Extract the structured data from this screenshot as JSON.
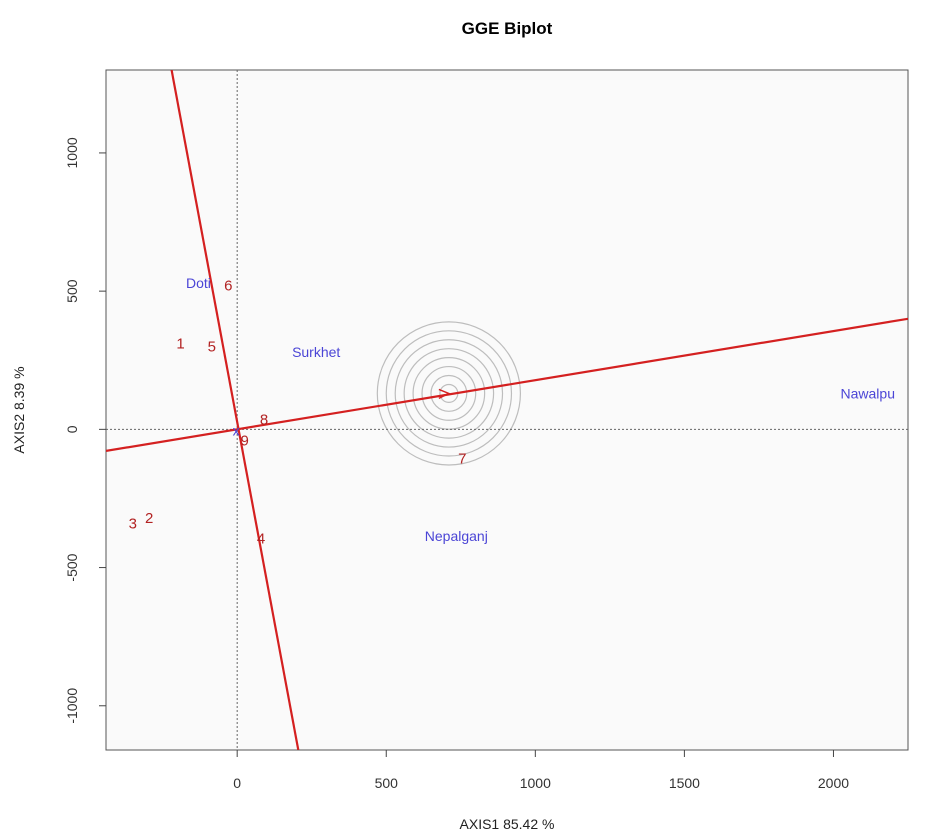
{
  "chart_data": {
    "type": "scatter",
    "title": "GGE Biplot",
    "xlabel": "AXIS1 85.42 %",
    "ylabel": "AXIS2 8.39 %",
    "xlim": [
      -440,
      2250
    ],
    "ylim": [
      -1160,
      1300
    ],
    "x_ticks": [
      0,
      500,
      1000,
      1500,
      2000
    ],
    "x_tick_labels": [
      "0",
      "500",
      "1000",
      "1500",
      "2000"
    ],
    "y_ticks": [
      -1000,
      -500,
      0,
      500,
      1000
    ],
    "y_tick_labels": [
      "-1000",
      "-500",
      "0",
      "500",
      "1000"
    ],
    "grid": false,
    "colors": {
      "genotype": "#b22222",
      "environment": "#4b45d6",
      "line": "#d42020",
      "circle": "#bdbdbd",
      "origin_line": "#666666"
    },
    "genotypes": [
      {
        "label": "1",
        "x": -190,
        "y": 310
      },
      {
        "label": "2",
        "x": -295,
        "y": -320
      },
      {
        "label": "3",
        "x": -350,
        "y": -340
      },
      {
        "label": "4",
        "x": 80,
        "y": -395
      },
      {
        "label": "5",
        "x": -85,
        "y": 300
      },
      {
        "label": "6",
        "x": -30,
        "y": 520
      },
      {
        "label": "7",
        "x": 755,
        "y": -105
      },
      {
        "label": "8",
        "x": 90,
        "y": 35
      },
      {
        "label": "9",
        "x": 25,
        "y": -40
      }
    ],
    "environments": [
      {
        "label": "Doti",
        "x": -130,
        "y": 530
      },
      {
        "label": "Surkhet",
        "x": 265,
        "y": 280
      },
      {
        "label": "Nepalganj",
        "x": 735,
        "y": -385
      },
      {
        "label": "Nawalpu",
        "x": 2115,
        "y": 130
      }
    ],
    "ideal_point": {
      "x": 710,
      "y": 130
    },
    "concentric_circles": 8,
    "aec_abscissa": {
      "x1": -440,
      "y1": -78,
      "x2": 2250,
      "y2": 400
    },
    "aec_ordinate": {
      "x1": -220,
      "y1": 1300,
      "x2": 205,
      "y2": -1160
    },
    "origin_marker": {
      "x": 0,
      "y": 0,
      "symbol": "x"
    }
  }
}
